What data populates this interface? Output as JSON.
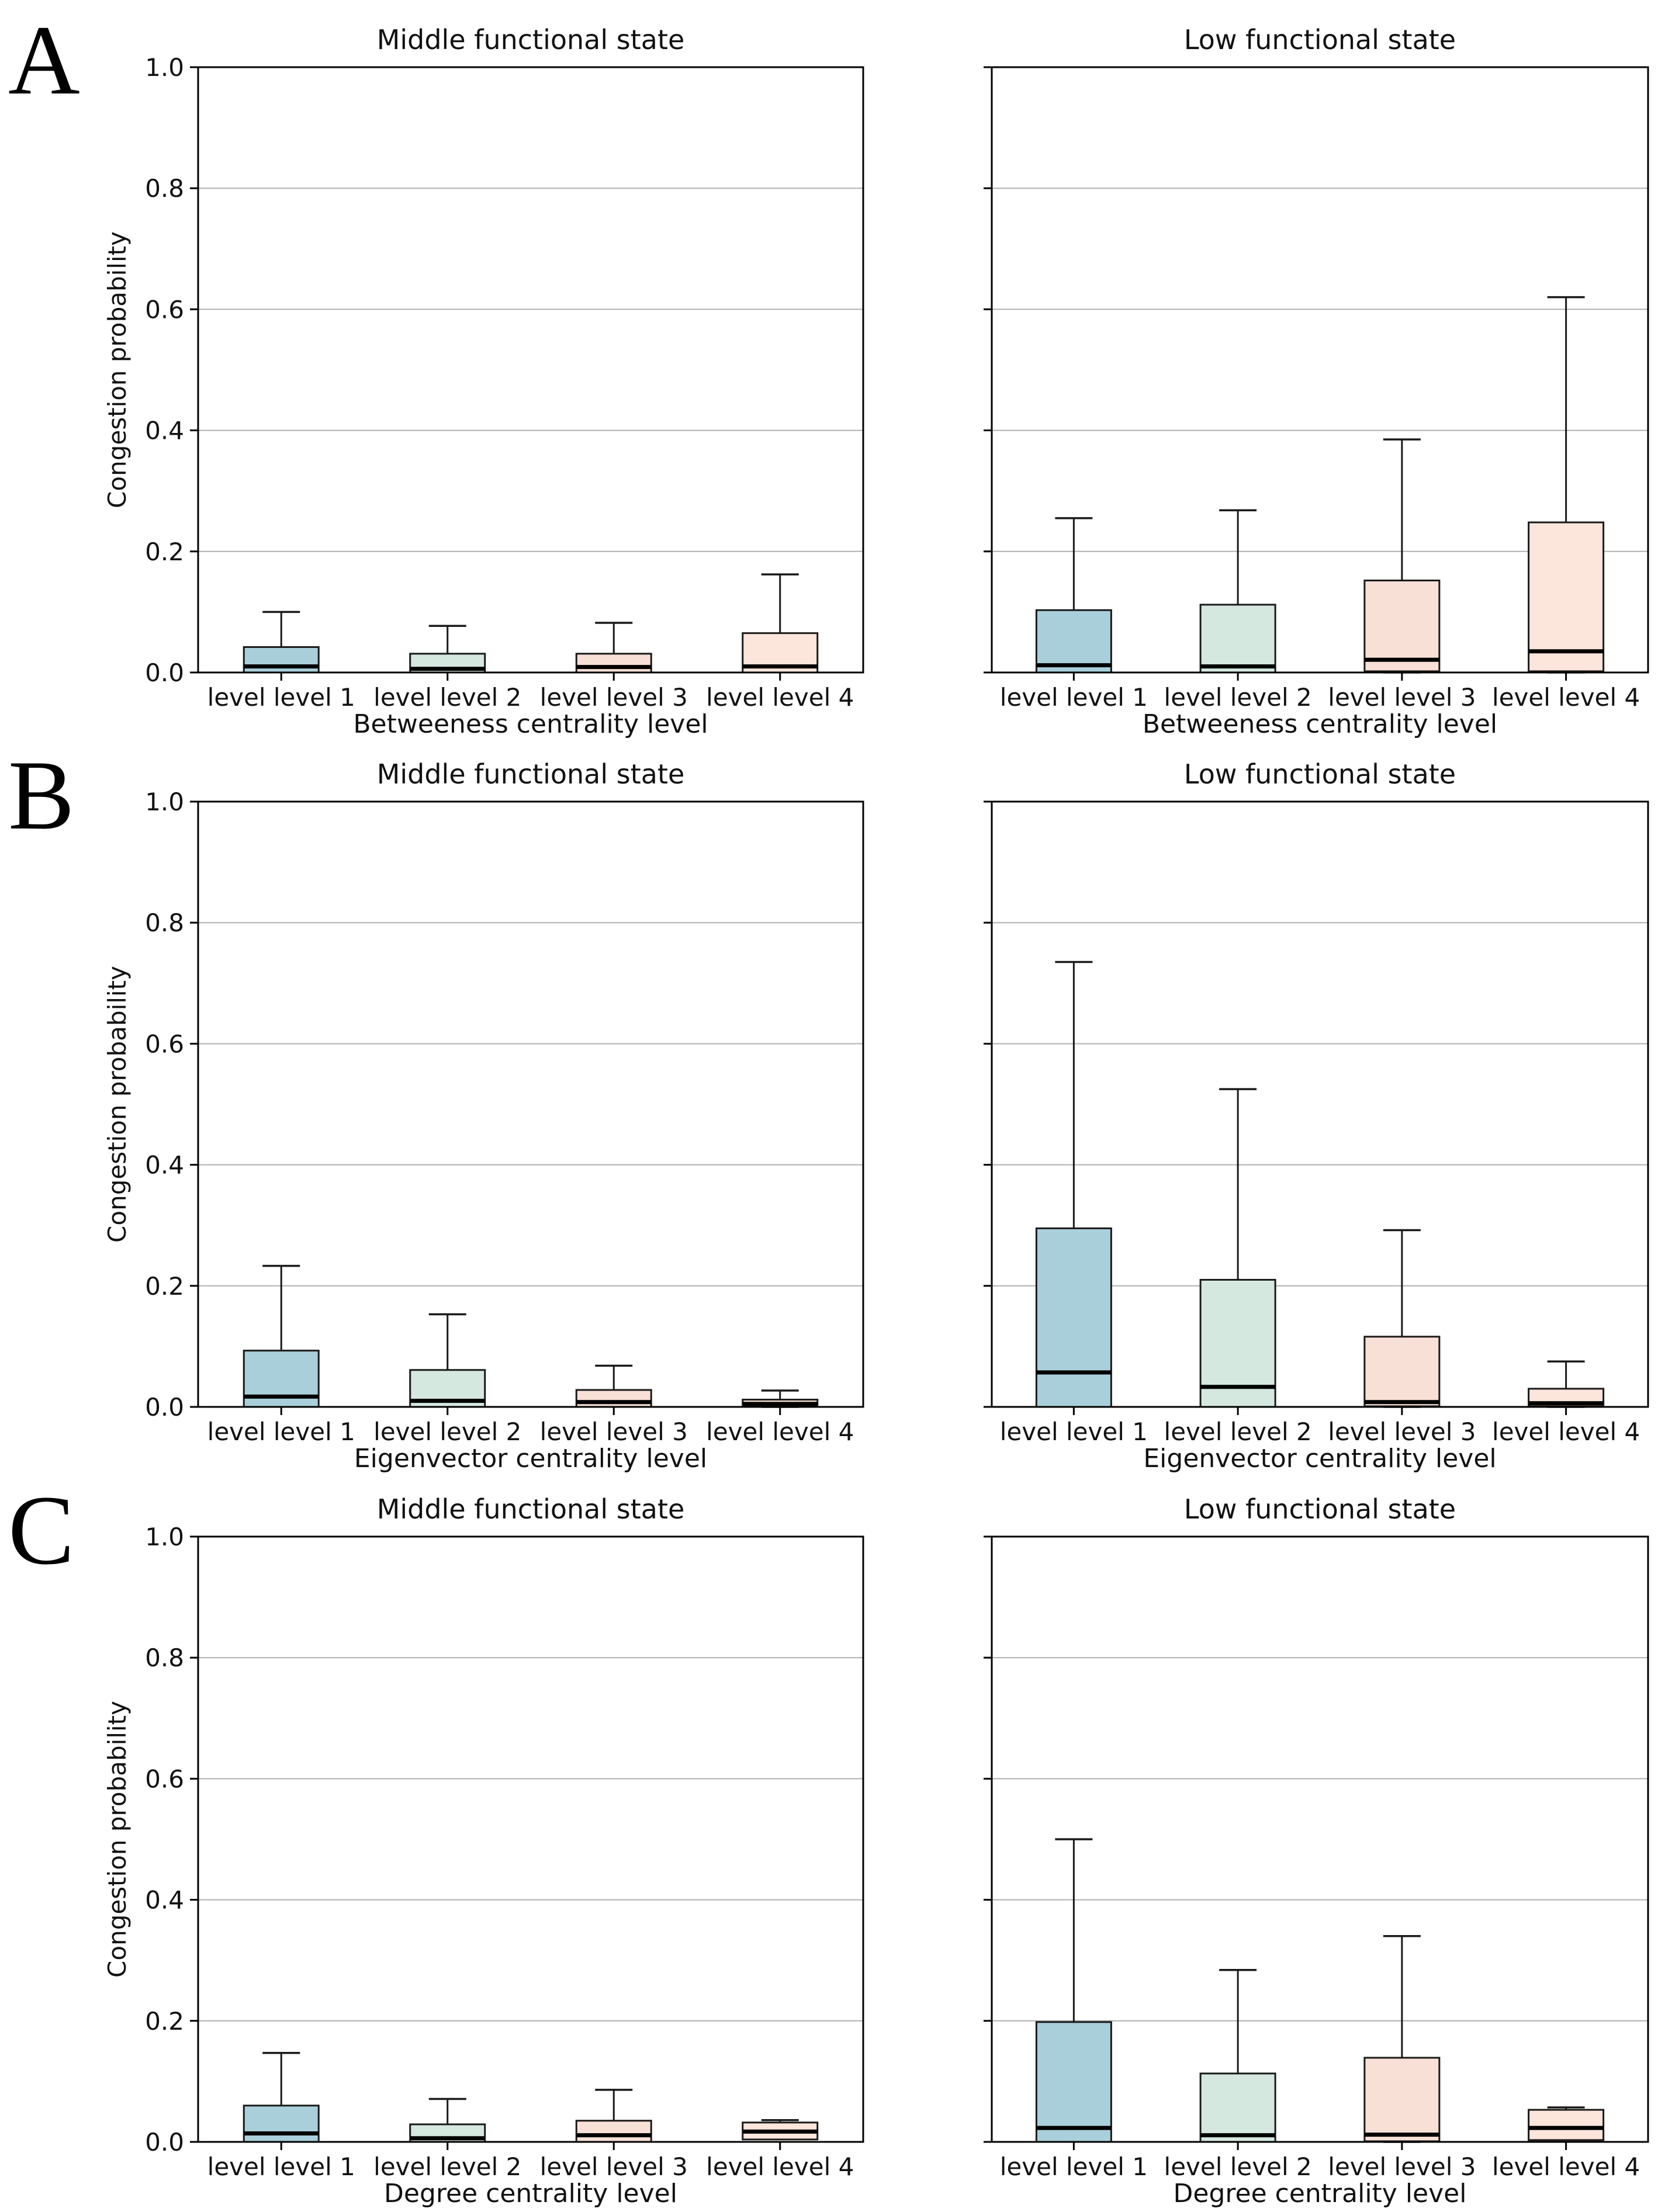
{
  "figure_background": "#ffffff",
  "style": {
    "spine_color": "#000000",
    "grid_color": "#b0b0b0",
    "box_edge_color": "#1a1a1a",
    "median_color": "#000000",
    "whisker_color": "#1a1a1a",
    "text_color": "#111111"
  },
  "chart_data": {
    "type": "box",
    "ylabel": "Congestion probability",
    "ylim": [
      0.0,
      1.0
    ],
    "y_ticks": [
      0.0,
      0.2,
      0.4,
      0.6,
      0.8,
      1.0
    ],
    "y_tick_labels": [
      "0.0",
      "0.2",
      "0.4",
      "0.6",
      "0.8",
      "1.0"
    ],
    "grid": "horizontal-light",
    "legend": "none",
    "categories": [
      "level level 1",
      "level level 2",
      "level level 3",
      "level level 4"
    ],
    "box_fill_colors": [
      "#a9cfda",
      "#d4e8df",
      "#f8e0d7",
      "#fce5da"
    ],
    "panels": [
      {
        "letter": "A",
        "xlabel": "Betweeness centrality level",
        "subplots": [
          {
            "title": "Middle functional state",
            "y_tick_labels_shown": true,
            "boxes": [
              {
                "category": "level level 1",
                "whisker_low": 0.0,
                "q1": 0.0,
                "median": 0.01,
                "q3": 0.042,
                "whisker_high": 0.1
              },
              {
                "category": "level level 2",
                "whisker_low": 0.0,
                "q1": 0.0,
                "median": 0.006,
                "q3": 0.031,
                "whisker_high": 0.077
              },
              {
                "category": "level level 3",
                "whisker_low": 0.0,
                "q1": 0.0,
                "median": 0.009,
                "q3": 0.031,
                "whisker_high": 0.082
              },
              {
                "category": "level level 4",
                "whisker_low": 0.0,
                "q1": 0.0,
                "median": 0.01,
                "q3": 0.065,
                "whisker_high": 0.162
              }
            ]
          },
          {
            "title": "Low functional state",
            "y_tick_labels_shown": false,
            "boxes": [
              {
                "category": "level level 1",
                "whisker_low": 0.0,
                "q1": 0.0,
                "median": 0.012,
                "q3": 0.103,
                "whisker_high": 0.255
              },
              {
                "category": "level level 2",
                "whisker_low": 0.0,
                "q1": 0.0,
                "median": 0.01,
                "q3": 0.112,
                "whisker_high": 0.268
              },
              {
                "category": "level level 3",
                "whisker_low": 0.0,
                "q1": 0.002,
                "median": 0.021,
                "q3": 0.152,
                "whisker_high": 0.385
              },
              {
                "category": "level level 4",
                "whisker_low": 0.0,
                "q1": 0.002,
                "median": 0.035,
                "q3": 0.248,
                "whisker_high": 0.62
              }
            ]
          }
        ]
      },
      {
        "letter": "B",
        "xlabel": "Eigenvector centrality level",
        "subplots": [
          {
            "title": "Middle functional state",
            "y_tick_labels_shown": true,
            "boxes": [
              {
                "category": "level level 1",
                "whisker_low": 0.0,
                "q1": 0.0,
                "median": 0.017,
                "q3": 0.093,
                "whisker_high": 0.233
              },
              {
                "category": "level level 2",
                "whisker_low": 0.0,
                "q1": 0.0,
                "median": 0.01,
                "q3": 0.061,
                "whisker_high": 0.153
              },
              {
                "category": "level level 3",
                "whisker_low": 0.0,
                "q1": 0.0,
                "median": 0.008,
                "q3": 0.028,
                "whisker_high": 0.068
              },
              {
                "category": "level level 4",
                "whisker_low": 0.0,
                "q1": 0.001,
                "median": 0.005,
                "q3": 0.012,
                "whisker_high": 0.027
              }
            ]
          },
          {
            "title": "Low functional state",
            "y_tick_labels_shown": false,
            "boxes": [
              {
                "category": "level level 1",
                "whisker_low": 0.0,
                "q1": 0.0,
                "median": 0.057,
                "q3": 0.295,
                "whisker_high": 0.735
              },
              {
                "category": "level level 2",
                "whisker_low": 0.0,
                "q1": 0.0,
                "median": 0.033,
                "q3": 0.21,
                "whisker_high": 0.525
              },
              {
                "category": "level level 3",
                "whisker_low": 0.0,
                "q1": 0.001,
                "median": 0.008,
                "q3": 0.116,
                "whisker_high": 0.292
              },
              {
                "category": "level level 4",
                "whisker_low": 0.0,
                "q1": 0.001,
                "median": 0.006,
                "q3": 0.03,
                "whisker_high": 0.075
              }
            ]
          }
        ]
      },
      {
        "letter": "C",
        "xlabel": "Degree centrality level",
        "subplots": [
          {
            "title": "Middle functional state",
            "y_tick_labels_shown": true,
            "boxes": [
              {
                "category": "level level 1",
                "whisker_low": 0.0,
                "q1": 0.0,
                "median": 0.014,
                "q3": 0.06,
                "whisker_high": 0.147
              },
              {
                "category": "level level 2",
                "whisker_low": 0.0,
                "q1": 0.0,
                "median": 0.006,
                "q3": 0.029,
                "whisker_high": 0.071
              },
              {
                "category": "level level 3",
                "whisker_low": 0.0,
                "q1": 0.0,
                "median": 0.011,
                "q3": 0.035,
                "whisker_high": 0.086
              },
              {
                "category": "level level 4",
                "whisker_low": 0.004,
                "q1": 0.004,
                "median": 0.017,
                "q3": 0.032,
                "whisker_high": 0.036
              }
            ]
          },
          {
            "title": "Low functional state",
            "y_tick_labels_shown": false,
            "boxes": [
              {
                "category": "level level 1",
                "whisker_low": 0.0,
                "q1": 0.0,
                "median": 0.023,
                "q3": 0.198,
                "whisker_high": 0.5
              },
              {
                "category": "level level 2",
                "whisker_low": 0.0,
                "q1": 0.0,
                "median": 0.011,
                "q3": 0.113,
                "whisker_high": 0.284
              },
              {
                "category": "level level 3",
                "whisker_low": 0.0,
                "q1": 0.001,
                "median": 0.012,
                "q3": 0.139,
                "whisker_high": 0.34
              },
              {
                "category": "level level 4",
                "whisker_low": 0.003,
                "q1": 0.003,
                "median": 0.023,
                "q3": 0.053,
                "whisker_high": 0.057
              }
            ]
          }
        ]
      }
    ]
  }
}
